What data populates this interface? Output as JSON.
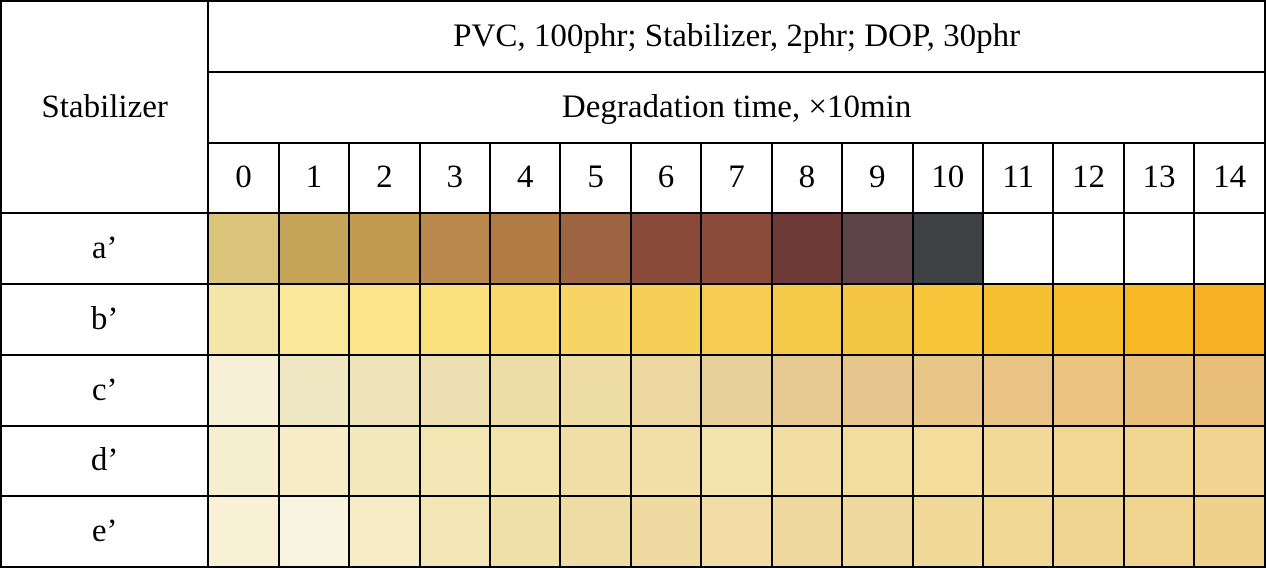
{
  "table": {
    "header_main": "PVC, 100phr; Stabilizer, 2phr; DOP, 30phr",
    "header_sub": "Degradation time, ×10min",
    "row_header": "Stabilizer",
    "times": [
      "0",
      "1",
      "2",
      "3",
      "4",
      "5",
      "6",
      "7",
      "8",
      "9",
      "10",
      "11",
      "12",
      "13",
      "14"
    ],
    "rows": [
      {
        "label": "a’",
        "colors": [
          "#d9c47a",
          "#c6a55a",
          "#c29a52",
          "#b9884c",
          "#b07c44",
          "#9c6440",
          "#8a4a3a",
          "#8c4c3a",
          "#6e3a38",
          "#5e4448",
          "#3f4245",
          "#ffffff",
          "#ffffff",
          "#ffffff",
          "#ffffff"
        ]
      },
      {
        "label": "b’",
        "colors": [
          "#f4e6a8",
          "#fae79a",
          "#fbe489",
          "#fae07c",
          "#f8d96b",
          "#f7d464",
          "#f6cf57",
          "#f6cd52",
          "#f5c94a",
          "#f5c642",
          "#f6c53a",
          "#f7c030",
          "#f7bd2a",
          "#f7b826",
          "#f7b022"
        ]
      },
      {
        "label": "c’",
        "colors": [
          "#f6f0d6",
          "#efe6c2",
          "#ede2b8",
          "#ecdfb2",
          "#ecdda8",
          "#eddca4",
          "#ecd7a0",
          "#e8d09a",
          "#e6ca92",
          "#e6c68c",
          "#e8c688",
          "#e9c384",
          "#ebc27e",
          "#e9bf7a",
          "#e8bd78"
        ]
      },
      {
        "label": "d’",
        "colors": [
          "#f6efcf",
          "#f6edc6",
          "#f4e9bc",
          "#f3e6b4",
          "#f2e2ac",
          "#f1dea6",
          "#f3e0a8",
          "#f3e2ab",
          "#f2dea2",
          "#f2dc9e",
          "#f3dc9c",
          "#f3d998",
          "#f3d794",
          "#f3d592",
          "#f2d490"
        ]
      },
      {
        "label": "e’",
        "colors": [
          "#f8f1d6",
          "#f9f4e0",
          "#f6edc6",
          "#f3e6b6",
          "#efe0aa",
          "#eedca4",
          "#efdba2",
          "#f0dca4",
          "#efd89e",
          "#efd89c",
          "#f0d898",
          "#f1d794",
          "#f0d592",
          "#f0d38e",
          "#efd18c"
        ]
      }
    ]
  }
}
